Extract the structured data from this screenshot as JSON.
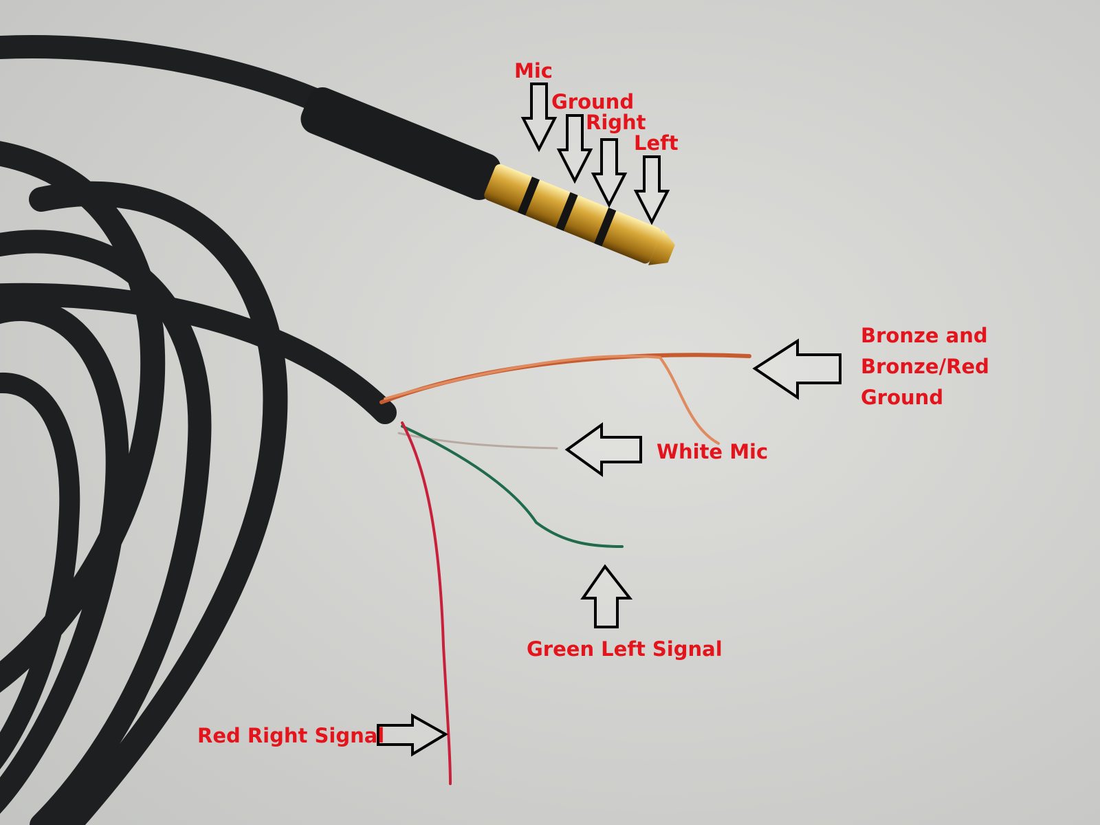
{
  "jack_labels": [
    "Mic",
    "Ground",
    "Right",
    "Left"
  ],
  "wire_labels": {
    "ground": [
      "Bronze and",
      "Bronze/Red",
      "Ground"
    ],
    "mic": "White Mic",
    "left": "Green Left Signal",
    "right": "Red Right Signal"
  }
}
